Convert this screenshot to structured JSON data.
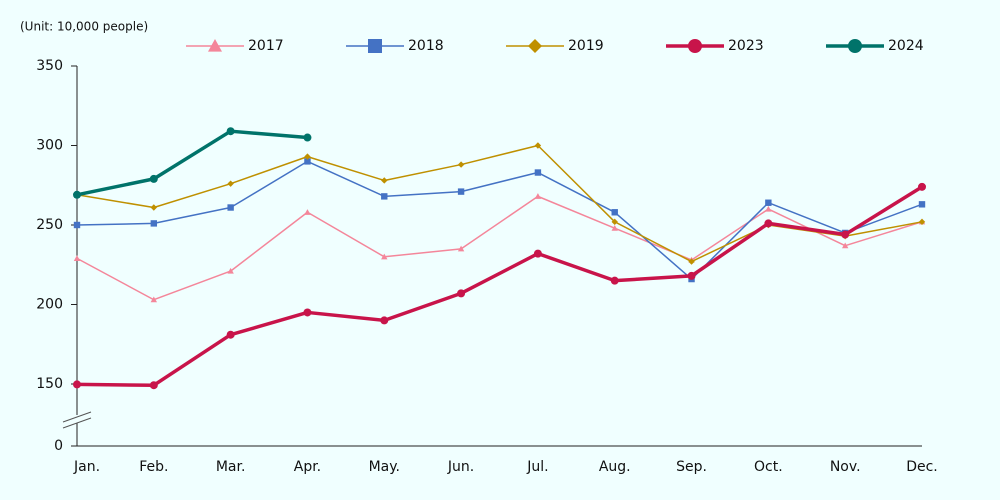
{
  "chart_data": {
    "type": "line",
    "unit_label": "(Unit: 10,000 people)",
    "categories": [
      "Jan.",
      "Feb.",
      "Mar.",
      "Apr.",
      "May.",
      "Jun.",
      "Jul.",
      "Aug.",
      "Sep.",
      "Oct.",
      "Nov.",
      "Dec."
    ],
    "series": [
      {
        "name": "2017",
        "color": "#f4869a",
        "marker": "triangle",
        "line_width": 1.5,
        "values": [
          229,
          203,
          221,
          258,
          230,
          235,
          268,
          248,
          228,
          260,
          237,
          252
        ]
      },
      {
        "name": "2018",
        "color": "#4472c4",
        "marker": "square",
        "line_width": 1.5,
        "values": [
          250,
          251,
          261,
          290,
          268,
          271,
          283,
          258,
          216,
          264,
          245,
          263
        ]
      },
      {
        "name": "2019",
        "color": "#bf9000",
        "marker": "diamond",
        "line_width": 1.5,
        "values": [
          269,
          261,
          276,
          293,
          278,
          288,
          300,
          252,
          227,
          250,
          243,
          252
        ]
      },
      {
        "name": "2023",
        "color": "#c8144a",
        "marker": "circle",
        "line_width": 3.5,
        "values": [
          149,
          147,
          181,
          195,
          190,
          207,
          232,
          215,
          218,
          251,
          244,
          274
        ]
      },
      {
        "name": "2024",
        "color": "#00736a",
        "marker": "circle",
        "line_width": 3.5,
        "values": [
          269,
          279,
          309,
          305,
          null,
          null,
          null,
          null,
          null,
          null,
          null,
          null
        ]
      }
    ],
    "ylim": [
      0,
      350
    ],
    "yticks": [
      0,
      150,
      200,
      250,
      300,
      350
    ],
    "axis_break": true,
    "grid": false,
    "legend": "top"
  }
}
